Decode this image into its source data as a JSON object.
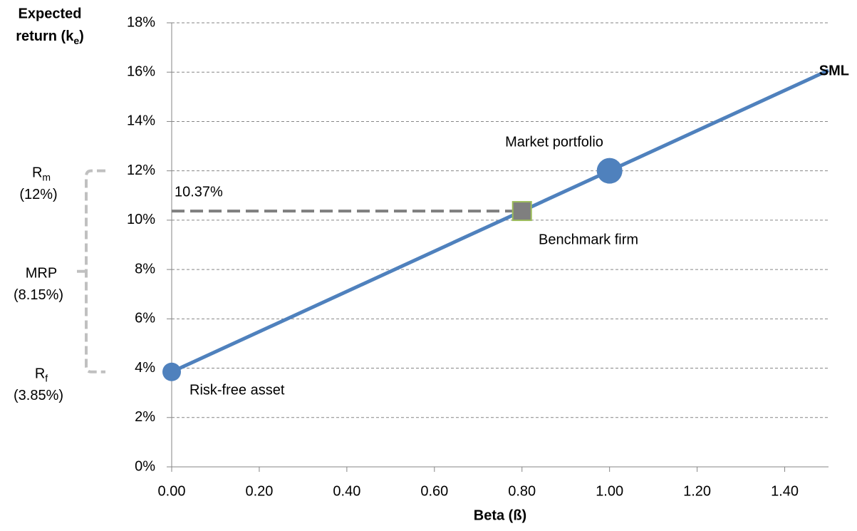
{
  "chart_data": {
    "type": "line",
    "y_label_lines": [
      "Expected",
      "return (k"
    ],
    "y_label_subscript": "e",
    "y_label_end": ")",
    "x_label": "Beta (ß)",
    "xlim": [
      0,
      1.5
    ],
    "xticks": [
      {
        "value": 0,
        "label": "0.00"
      },
      {
        "value": 0.2,
        "label": "0.20"
      },
      {
        "value": 0.4,
        "label": "0.40"
      },
      {
        "value": 0.6,
        "label": "0.60"
      },
      {
        "value": 0.8,
        "label": "0.80"
      },
      {
        "value": 1,
        "label": "1.00"
      },
      {
        "value": 1.2,
        "label": "1.20"
      },
      {
        "value": 1.4,
        "label": "1.40"
      }
    ],
    "ylim": [
      0,
      18
    ],
    "yticks": [
      {
        "value": 0,
        "label": "0%"
      },
      {
        "value": 2,
        "label": "2%"
      },
      {
        "value": 4,
        "label": "4%"
      },
      {
        "value": 6,
        "label": "6%"
      },
      {
        "value": 8,
        "label": "8%"
      },
      {
        "value": 10,
        "label": "10%"
      },
      {
        "value": 12,
        "label": "12%"
      },
      {
        "value": 14,
        "label": "14%"
      },
      {
        "value": 16,
        "label": "16%"
      },
      {
        "value": 18,
        "label": "18%"
      }
    ],
    "grid": true,
    "line": {
      "name": "SML",
      "color": "#4f81bd",
      "x": [
        0,
        1.5
      ],
      "values": [
        3.85,
        16.075
      ]
    },
    "points": [
      {
        "name": "Risk-free asset",
        "x": 0,
        "value": 3.85,
        "shape": "circle",
        "color": "#4f81bd"
      },
      {
        "name": "Market portfolio",
        "x": 1,
        "value": 12,
        "shape": "circle",
        "color": "#4f81bd"
      },
      {
        "name": "Benchmark firm",
        "x": 0.8,
        "value": 10.37,
        "value_label": "10.37%",
        "shape": "square",
        "color": "#7f7f7f"
      }
    ],
    "brackets": [
      {
        "symbol": "R",
        "subscript": "m",
        "label": "(12%)"
      },
      {
        "symbol": "MRP",
        "label": "(8.15%)"
      },
      {
        "symbol": "R",
        "subscript": "f",
        "label": "(3.85%)"
      }
    ]
  }
}
